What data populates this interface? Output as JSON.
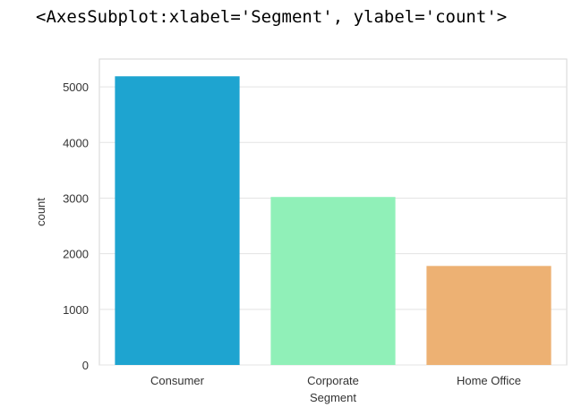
{
  "output_text": "<AxesSubplot:xlabel='Segment', ylabel='count'>",
  "chart_data": {
    "type": "bar",
    "categories": [
      "Consumer",
      "Corporate",
      "Home Office"
    ],
    "values": [
      5190,
      3020,
      1780
    ],
    "colors": [
      "#1ea4d0",
      "#90f0b8",
      "#edb173"
    ],
    "xlabel": "Segment",
    "ylabel": "count",
    "ylim": [
      0,
      5500
    ],
    "yticks": [
      0,
      1000,
      2000,
      3000,
      4000,
      5000
    ],
    "grid": "horizontal",
    "style": "seaborn-whitegrid"
  }
}
